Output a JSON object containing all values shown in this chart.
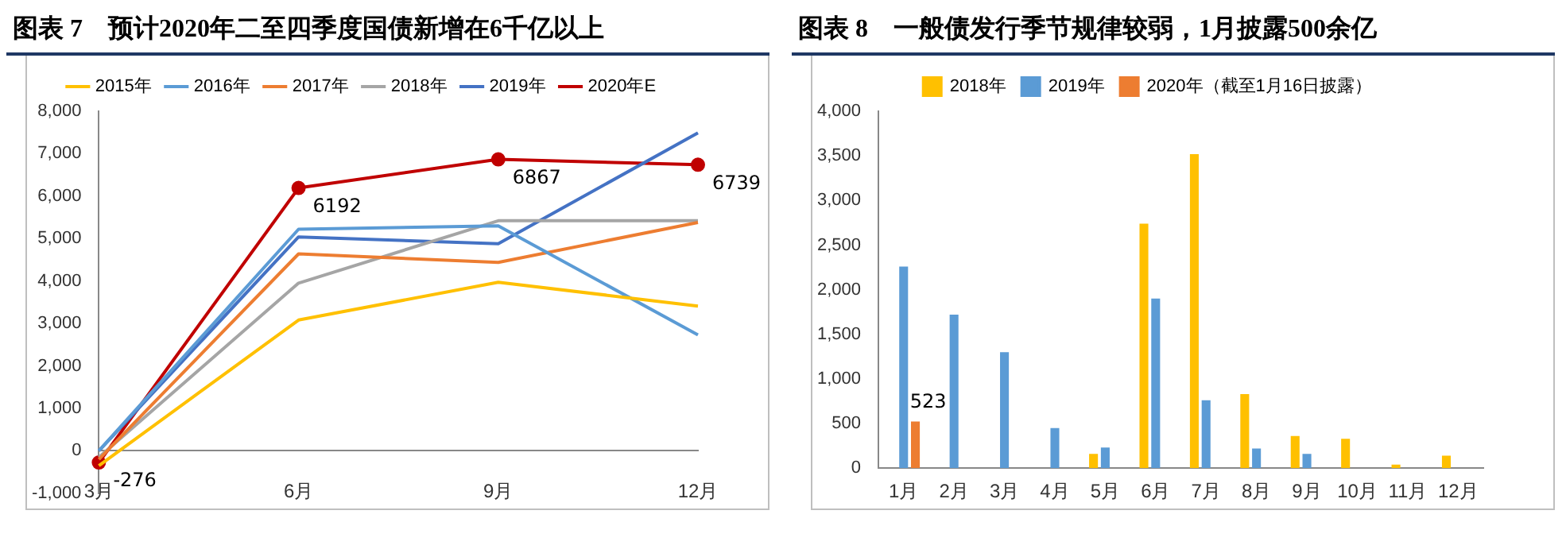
{
  "chart_data": [
    {
      "type": "line",
      "title": "图表 7　预计2020年二至四季度国债新增在6千亿以上",
      "categories": [
        "3月",
        "6月",
        "9月",
        "12月"
      ],
      "series": [
        {
          "name": "2015年",
          "color": "#ffc000",
          "values": [
            -350,
            3080,
            3970,
            3410
          ]
        },
        {
          "name": "2016年",
          "color": "#5b9bd5",
          "values": [
            0,
            5220,
            5300,
            2730
          ]
        },
        {
          "name": "2017年",
          "color": "#ed7d31",
          "values": [
            -200,
            4640,
            4440,
            5380
          ]
        },
        {
          "name": "2018年",
          "color": "#a5a5a5",
          "values": [
            -150,
            3950,
            5420,
            5420
          ]
        },
        {
          "name": "2019年",
          "color": "#4472c4",
          "values": [
            0,
            5040,
            4880,
            7490
          ]
        },
        {
          "name": "2020年E",
          "color": "#c00000",
          "values": [
            -276,
            6192,
            6867,
            6739
          ],
          "marker": "circle",
          "value_labels": [
            "-276",
            "6192",
            "6867",
            "6739"
          ]
        }
      ],
      "ylim": [
        -1000,
        8000
      ],
      "yticks": [
        {
          "value": -1000,
          "label": "-1,000"
        },
        {
          "value": 0,
          "label": "0"
        },
        {
          "value": 1000,
          "label": "1,000"
        },
        {
          "value": 2000,
          "label": "2,000"
        },
        {
          "value": 3000,
          "label": "3,000"
        },
        {
          "value": 4000,
          "label": "4,000"
        },
        {
          "value": 5000,
          "label": "5,000"
        },
        {
          "value": 6000,
          "label": "6,000"
        },
        {
          "value": 7000,
          "label": "7,000"
        },
        {
          "value": 8000,
          "label": "8,000"
        }
      ],
      "grid": false,
      "legend": "top",
      "marker": "none"
    },
    {
      "type": "bar",
      "title": "图表 8　一般债发行季节规律较弱，1月披露500余亿",
      "categories": [
        "1月",
        "2月",
        "3月",
        "4月",
        "5月",
        "6月",
        "7月",
        "8月",
        "9月",
        "10月",
        "11月",
        "12月"
      ],
      "series": [
        {
          "name": "2018年",
          "color": "#ffc000",
          "values": [
            null,
            null,
            null,
            null,
            160,
            2740,
            3520,
            830,
            360,
            330,
            40,
            140
          ]
        },
        {
          "name": "2019年",
          "color": "#5b9bd5",
          "values": [
            2260,
            1720,
            1300,
            450,
            230,
            1900,
            760,
            220,
            160,
            null,
            null,
            null
          ]
        },
        {
          "name": "2020年（截至1月16日披露）",
          "color": "#ed7d31",
          "values": [
            523,
            null,
            null,
            null,
            null,
            null,
            null,
            null,
            null,
            null,
            null,
            null
          ],
          "value_labels": [
            "523",
            null,
            null,
            null,
            null,
            null,
            null,
            null,
            null,
            null,
            null,
            null
          ]
        }
      ],
      "ylim": [
        0,
        4000
      ],
      "yticks": [
        {
          "value": 0,
          "label": "0"
        },
        {
          "value": 500,
          "label": "500"
        },
        {
          "value": 1000,
          "label": "1,000"
        },
        {
          "value": 1500,
          "label": "1,500"
        },
        {
          "value": 2000,
          "label": "2,000"
        },
        {
          "value": 2500,
          "label": "2,500"
        },
        {
          "value": 3000,
          "label": "3,000"
        },
        {
          "value": 3500,
          "label": "3,500"
        },
        {
          "value": 4000,
          "label": "4,000"
        }
      ],
      "grid": false,
      "legend": "top"
    }
  ]
}
